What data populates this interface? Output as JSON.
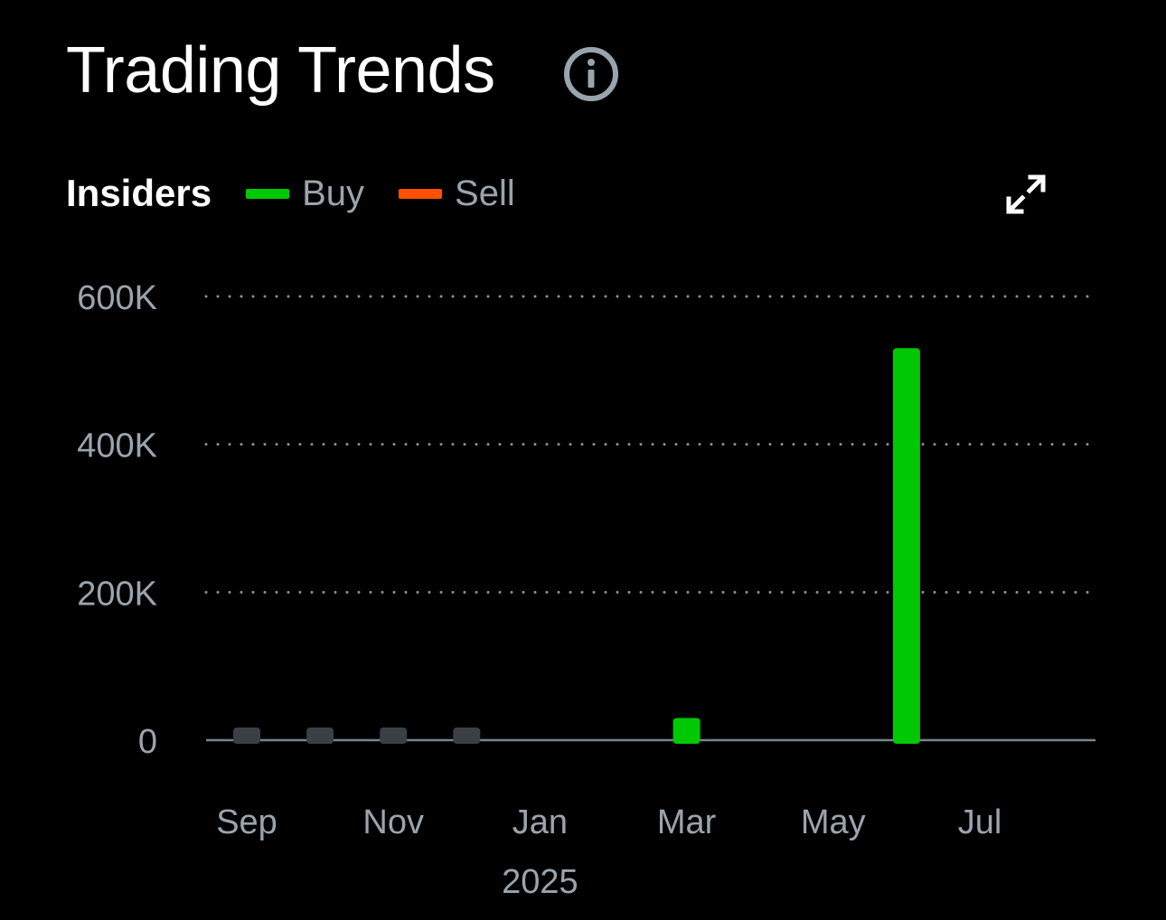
{
  "header": {
    "title": "Trading Trends",
    "info_icon": "info-circle-icon"
  },
  "legend": {
    "title": "Insiders",
    "items": [
      {
        "label": "Buy",
        "color": "#00c805"
      },
      {
        "label": "Sell",
        "color": "#ff5000"
      }
    ]
  },
  "expand_icon": "expand-arrows-icon",
  "chart_data": {
    "type": "bar",
    "y_ticks": [
      {
        "value": 0,
        "label": "0"
      },
      {
        "value": 200000,
        "label": "200K"
      },
      {
        "value": 400000,
        "label": "400K"
      },
      {
        "value": 600000,
        "label": "600K"
      }
    ],
    "ylim": [
      0,
      600000
    ],
    "x_ticks": [
      {
        "month": "2024-09",
        "label": "Sep"
      },
      {
        "month": "2024-11",
        "label": "Nov"
      },
      {
        "month": "2025-01",
        "label": "Jan",
        "sublabel": "2025"
      },
      {
        "month": "2025-03",
        "label": "Mar"
      },
      {
        "month": "2025-05",
        "label": "May"
      },
      {
        "month": "2025-07",
        "label": "Jul"
      }
    ],
    "bars": [
      {
        "month": "2024-09",
        "value": 0,
        "kind": "none"
      },
      {
        "month": "2024-10",
        "value": 0,
        "kind": "none"
      },
      {
        "month": "2024-11",
        "value": 0,
        "kind": "none"
      },
      {
        "month": "2024-12",
        "value": 0,
        "kind": "none"
      },
      {
        "month": "2025-03",
        "value": 30000,
        "kind": "buy"
      },
      {
        "month": "2025-06",
        "value": 530000,
        "kind": "buy"
      }
    ],
    "grid": "dotted-horizontal",
    "legend_position": "top-left",
    "colors": {
      "buy": "#00c805",
      "sell": "#ff5000",
      "none": "#3a4045",
      "grid": "#8a949c",
      "axis": "#7a848c"
    }
  }
}
